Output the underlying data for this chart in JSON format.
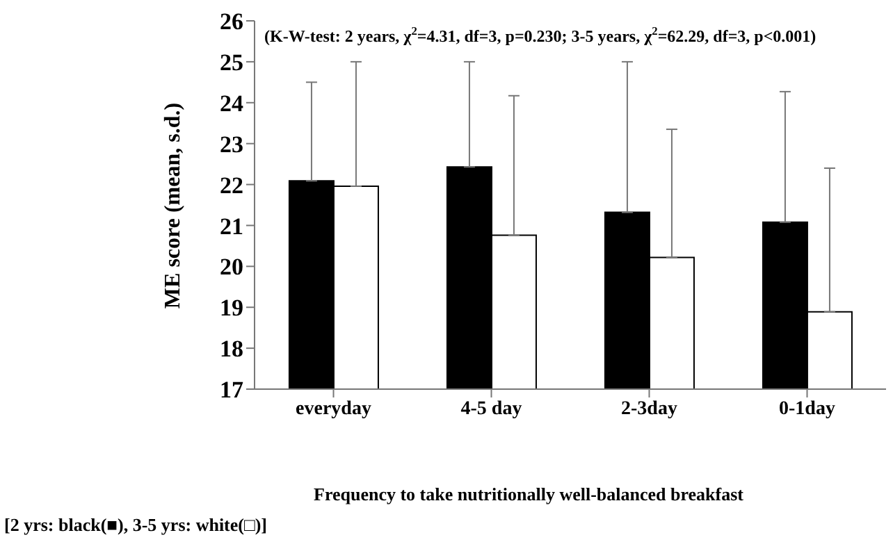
{
  "chart_data": {
    "type": "bar",
    "xlabel": "Frequency to take nutritionally well-balanced breakfast",
    "ylabel": "ME score (mean, s.d.)",
    "categories": [
      "everyday",
      "4-5 day",
      "2-3day",
      "0-1day"
    ],
    "series": [
      {
        "color": "#000000",
        "values": [
          22.09,
          22.43,
          21.32,
          21.08
        ],
        "errors": [
          [
            22.09,
            24.5
          ],
          [
            22.43,
            25.0
          ],
          [
            21.32,
            25.0
          ],
          [
            21.08,
            24.27
          ]
        ]
      },
      {
        "color": "#ffffff",
        "values": [
          21.96,
          20.76,
          20.22,
          18.89
        ],
        "errors": [
          [
            21.96,
            25.0
          ],
          [
            20.76,
            24.17
          ],
          [
            20.22,
            23.35
          ],
          [
            18.89,
            22.4
          ]
        ]
      }
    ],
    "ylim": [
      17,
      26
    ],
    "yticks": [
      17,
      18,
      19,
      20,
      21,
      22,
      23,
      24,
      25,
      26
    ],
    "grid": false,
    "legend": false,
    "annotations": [
      "(K-W-test: 2 years, χ$^{2}$=4.31, df=3, p=0.230; 3-5 years, χ$^{2}$=62.29, df=3, p<0.001)",
      "[2 yrs: black(■), 3-5 yrs: white(□)]"
    ]
  }
}
